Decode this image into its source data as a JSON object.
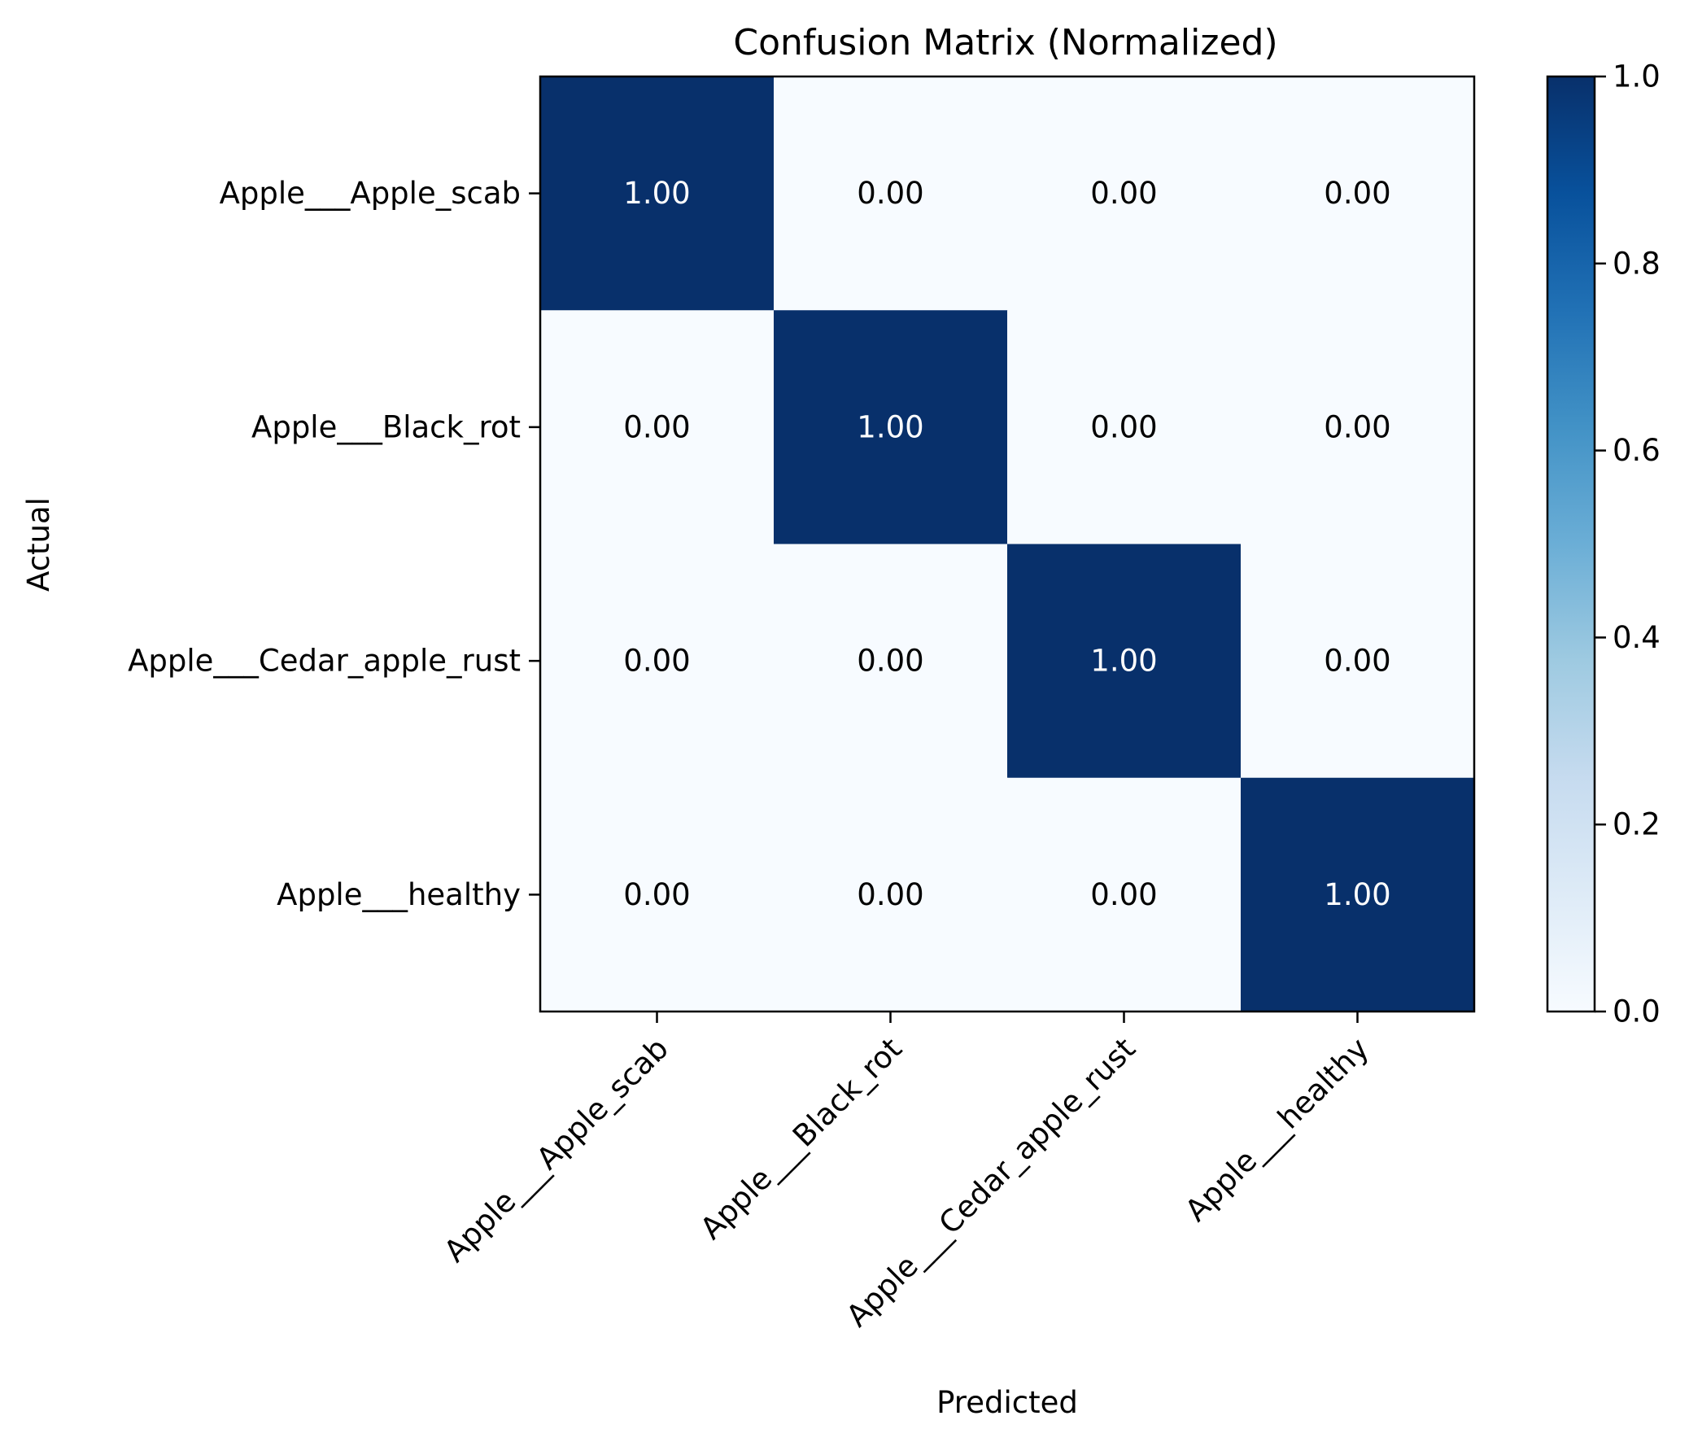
{
  "chart_data": {
    "type": "heatmap",
    "title": "Confusion Matrix (Normalized)",
    "xlabel": "Predicted",
    "ylabel": "Actual",
    "x_categories": [
      "Apple___Apple_scab",
      "Apple___Black_rot",
      "Apple___Cedar_apple_rust",
      "Apple___healthy"
    ],
    "y_categories": [
      "Apple___Apple_scab",
      "Apple___Black_rot",
      "Apple___Cedar_apple_rust",
      "Apple___healthy"
    ],
    "values": [
      [
        1.0,
        0.0,
        0.0,
        0.0
      ],
      [
        0.0,
        1.0,
        0.0,
        0.0
      ],
      [
        0.0,
        0.0,
        1.0,
        0.0
      ],
      [
        0.0,
        0.0,
        0.0,
        1.0
      ]
    ],
    "cell_labels": [
      [
        "1.00",
        "0.00",
        "0.00",
        "0.00"
      ],
      [
        "0.00",
        "1.00",
        "0.00",
        "0.00"
      ],
      [
        "0.00",
        "0.00",
        "1.00",
        "0.00"
      ],
      [
        "0.00",
        "0.00",
        "0.00",
        "1.00"
      ]
    ],
    "colormap": "Blues",
    "colors": {
      "low": "#f7fbff",
      "high": "#08306b"
    },
    "colorbar": {
      "range": [
        0.0,
        1.0
      ],
      "ticks": [
        "0.0",
        "0.2",
        "0.4",
        "0.6",
        "0.8",
        "1.0"
      ]
    },
    "grid": false
  }
}
